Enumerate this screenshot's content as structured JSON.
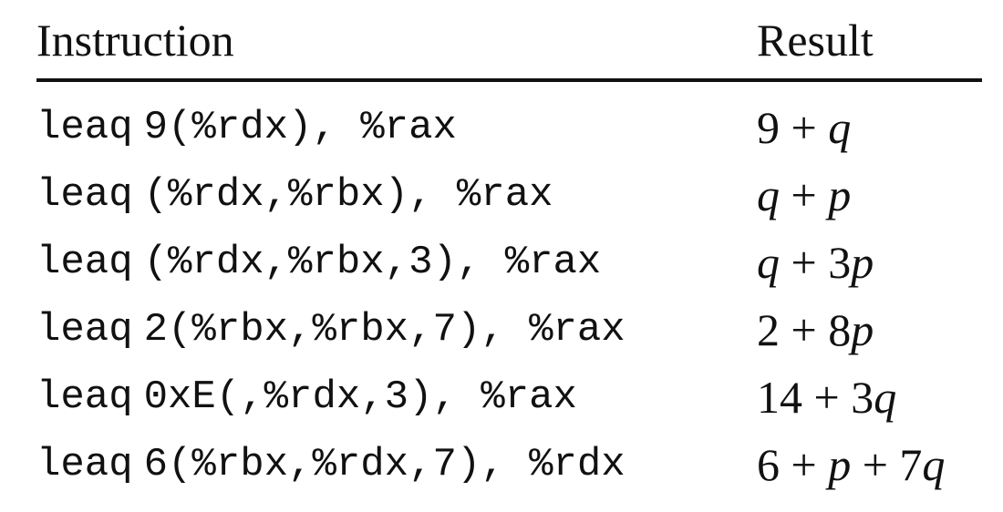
{
  "header": {
    "instruction": "Instruction",
    "result": "Result"
  },
  "rows": [
    {
      "op": "leaq",
      "operands": "9(%rdx), %rax",
      "result": "9 + q"
    },
    {
      "op": "leaq",
      "operands": "(%rdx,%rbx), %rax",
      "result": "q + p"
    },
    {
      "op": "leaq",
      "operands": "(%rdx,%rbx,3), %rax",
      "result": "q + 3p"
    },
    {
      "op": "leaq",
      "operands": "2(%rbx,%rbx,7), %rax",
      "result": "2 + 8p"
    },
    {
      "op": "leaq",
      "operands": "0xE(,%rdx,3), %rax",
      "result": "14 + 3q"
    },
    {
      "op": "leaq",
      "operands": "6(%rbx,%rdx,7), %rdx",
      "result": "6 + p + 7q"
    }
  ]
}
